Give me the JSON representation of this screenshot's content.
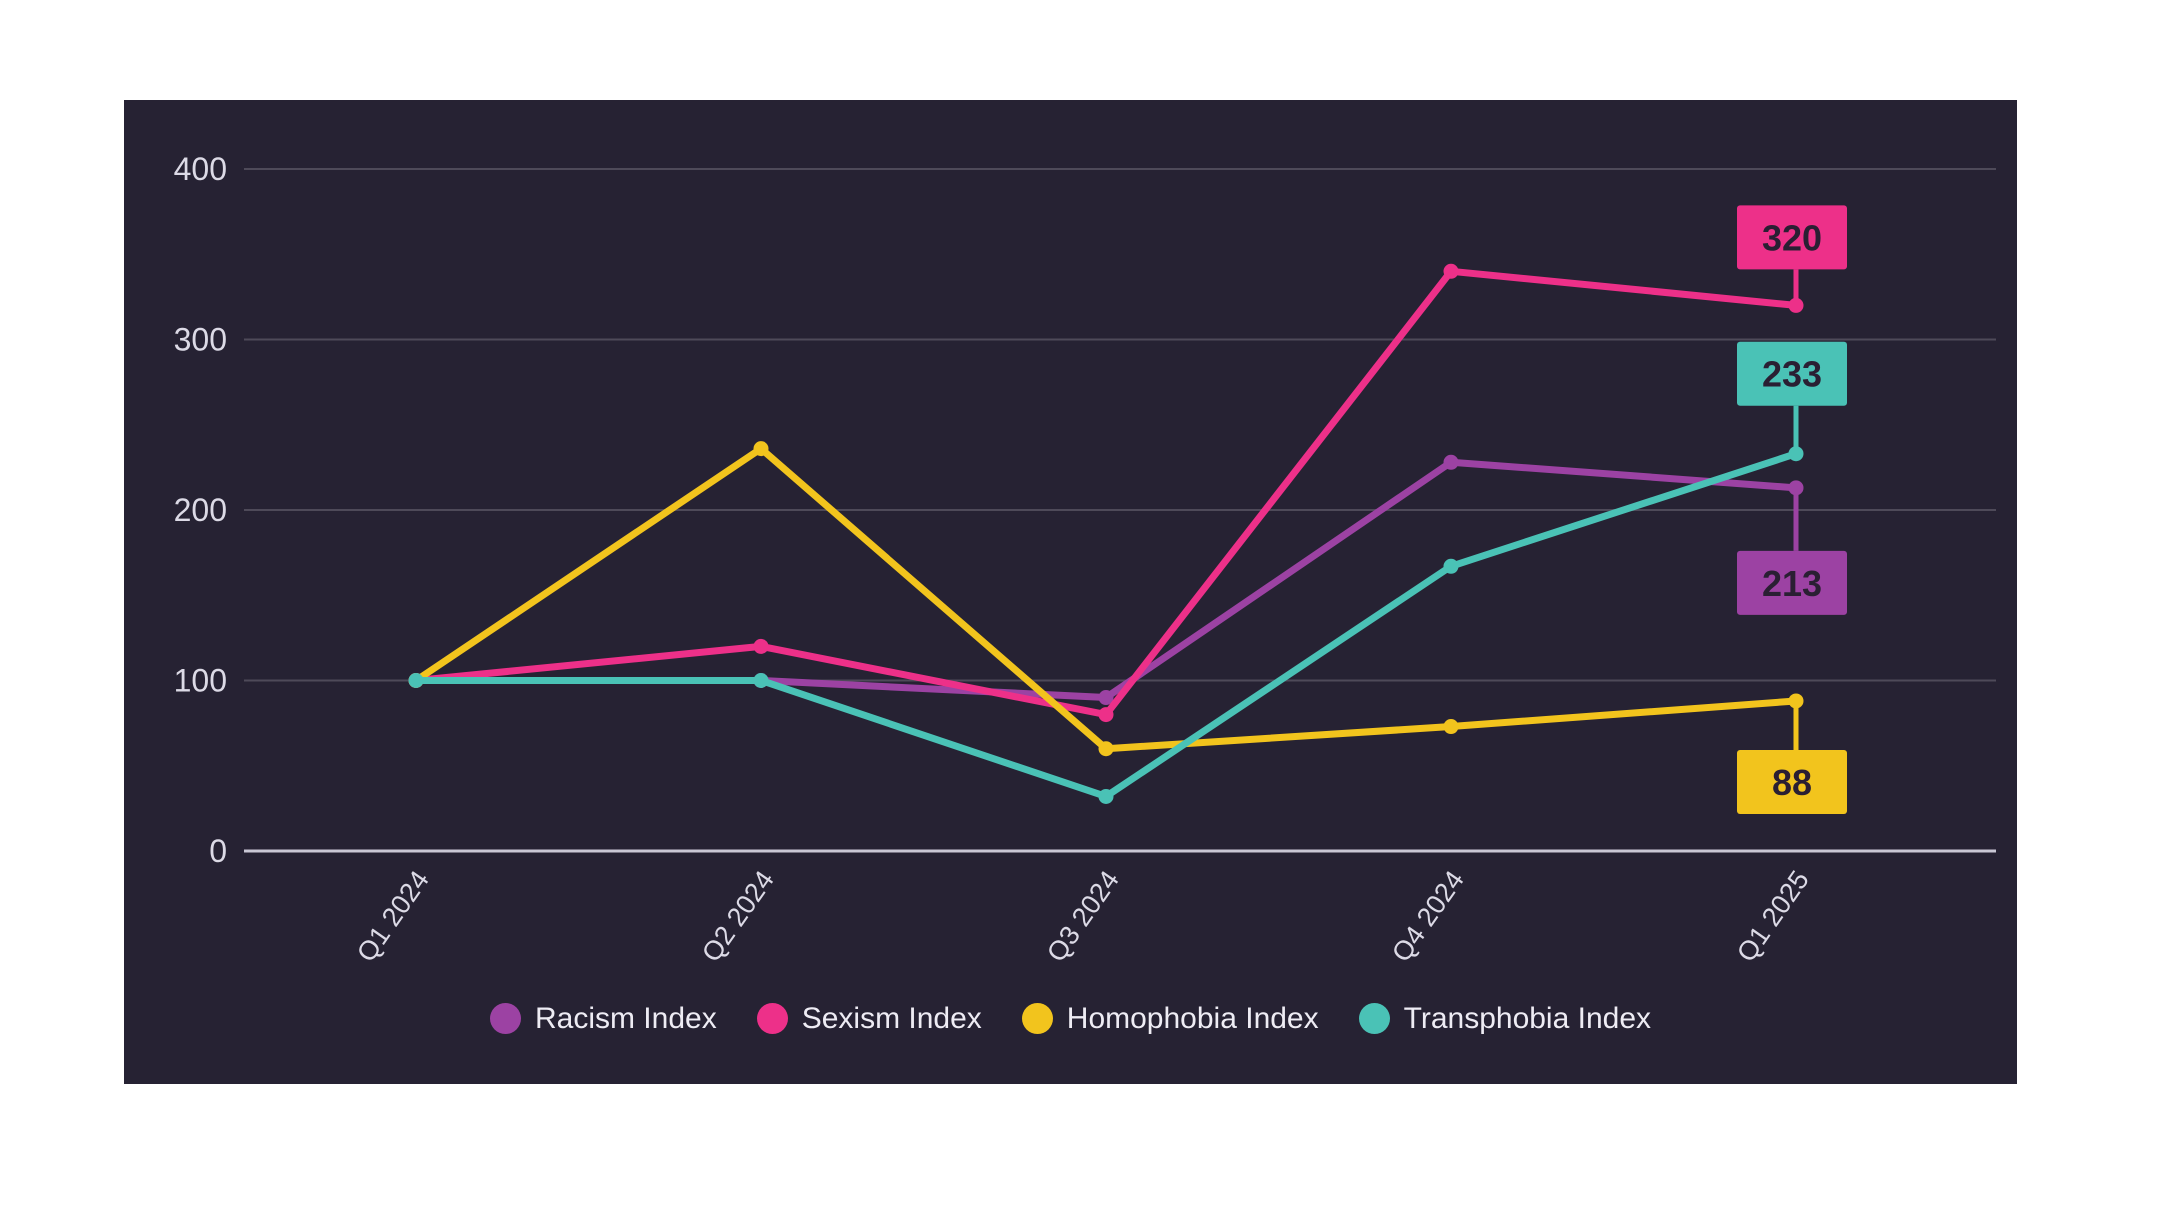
{
  "chart_data": {
    "type": "line",
    "categories": [
      "Q1 2024",
      "Q2 2024",
      "Q3 2024",
      "Q4 2024",
      "Q1 2025"
    ],
    "series": [
      {
        "name": "Racism Index",
        "color": "#9C42A3",
        "values": [
          100,
          100,
          90,
          228,
          213
        ],
        "end_label": {
          "text": "213",
          "side": "below",
          "gap": 63
        }
      },
      {
        "name": "Sexism Index",
        "color": "#ED3089",
        "values": [
          100,
          120,
          80,
          340,
          320
        ],
        "end_label": {
          "text": "320",
          "side": "above",
          "gap": 36
        }
      },
      {
        "name": "Homophobia Index",
        "color": "#F2C41D",
        "values": [
          100,
          236,
          60,
          73,
          88
        ],
        "end_label": {
          "text": "88",
          "side": "below",
          "gap": 49
        }
      },
      {
        "name": "Transphobia Index",
        "color": "#4AC2B6",
        "values": [
          100,
          100,
          32,
          167,
          233
        ],
        "end_label": {
          "text": "233",
          "side": "above",
          "gap": 48
        }
      }
    ],
    "yticks": [
      400,
      300,
      200,
      100,
      0
    ],
    "ylim": [
      0,
      440
    ],
    "grid": true,
    "legend_position": "bottom",
    "title": "",
    "xlabel": "",
    "ylabel": ""
  },
  "colors": {
    "page_bg": "#FFFFFF",
    "panel_bg": "#262233",
    "gridline": "#4E4A59",
    "zero_axis": "#C9C7D4",
    "tick_text": "#DCDAE6",
    "legend_text": "#EEECF4",
    "value_label_text": "#2A1F33"
  }
}
